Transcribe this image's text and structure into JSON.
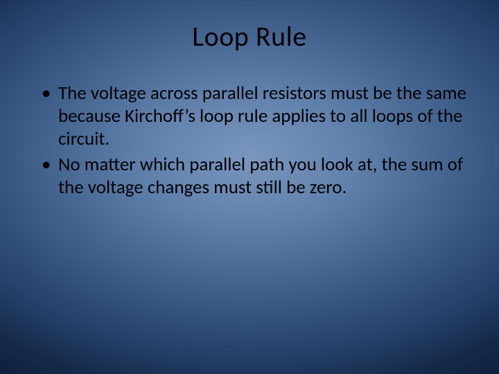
{
  "slide": {
    "title": "Loop Rule",
    "bullets": [
      "The voltage across parallel resistors must be the same because Kirchoff’s loop rule applies to all loops of the circuit.",
      "No matter which parallel path you look at, the sum of the voltage changes must still be zero."
    ]
  },
  "styling": {
    "background_gradient": {
      "type": "radial",
      "center_color": "#7a96bd",
      "mid_color": "#3d5c88",
      "edge_color": "#0c1b35"
    },
    "title_fontsize": 40,
    "title_color": "#000000",
    "body_fontsize": 27,
    "body_color": "#000000",
    "font_family": "Calibri",
    "slide_width": 720,
    "slide_height": 540
  }
}
